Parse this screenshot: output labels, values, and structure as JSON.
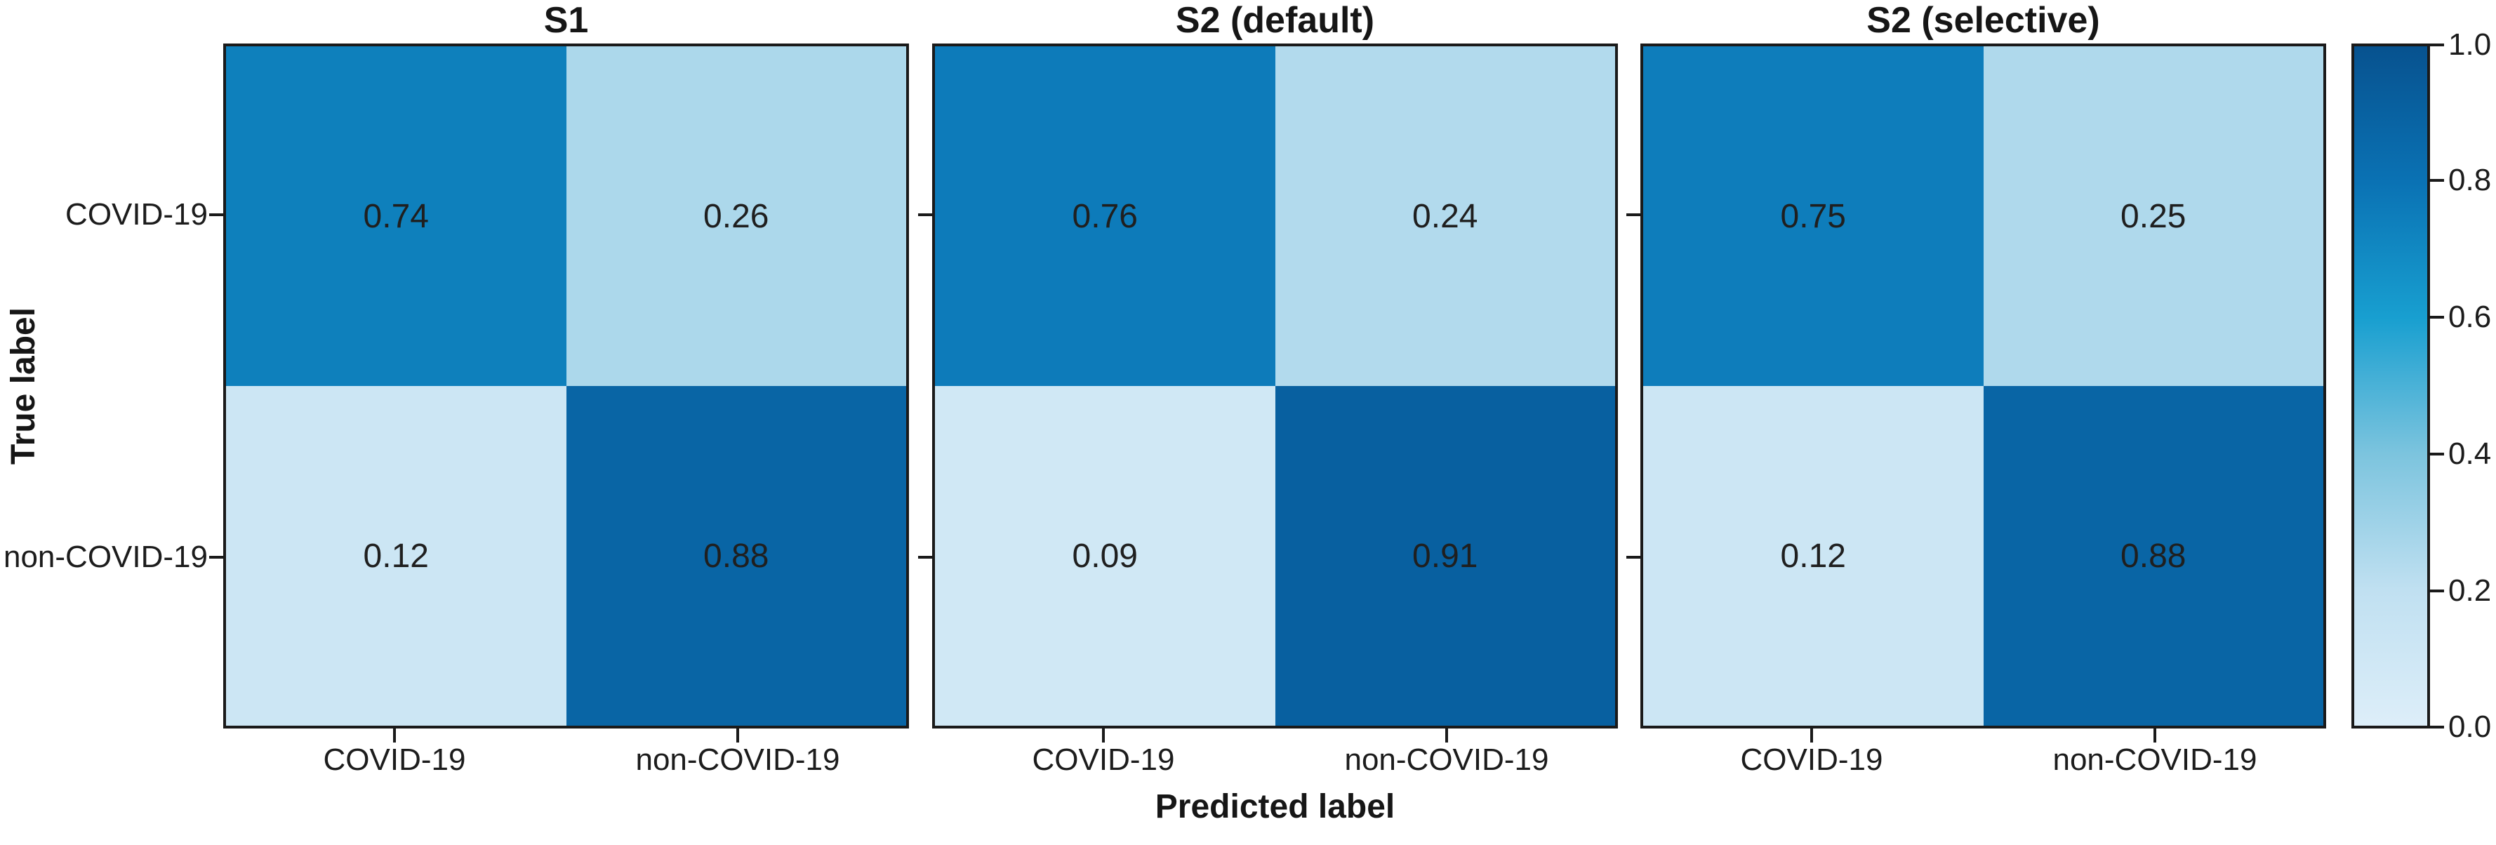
{
  "figure": {
    "xlabel": "Predicted label",
    "ylabel": "True label",
    "classes": [
      "COVID-19",
      "non-COVID-19"
    ],
    "background_color": "#ffffff",
    "spine_color": "#1a1a1a",
    "cell_text_color": "#1f1f1f"
  },
  "chart_data": [
    {
      "type": "heatmap",
      "title": "S1",
      "x_categories": [
        "COVID-19",
        "non-COVID-19"
      ],
      "y_categories": [
        "COVID-19",
        "non-COVID-19"
      ],
      "matrix": [
        [
          0.74,
          0.26
        ],
        [
          0.12,
          0.88
        ]
      ],
      "xlabel": "Predicted label",
      "ylabel": "True label",
      "value_range": [
        0.0,
        1.0
      ],
      "colormap": "blues",
      "grid": false,
      "legend_position": "shared-colorbar-right"
    },
    {
      "type": "heatmap",
      "title": "S2 (default)",
      "x_categories": [
        "COVID-19",
        "non-COVID-19"
      ],
      "y_categories": [
        "COVID-19",
        "non-COVID-19"
      ],
      "matrix": [
        [
          0.76,
          0.24
        ],
        [
          0.09,
          0.91
        ]
      ],
      "xlabel": "Predicted label",
      "ylabel": "True label",
      "value_range": [
        0.0,
        1.0
      ],
      "colormap": "blues",
      "grid": false,
      "legend_position": "shared-colorbar-right"
    },
    {
      "type": "heatmap",
      "title": "S2 (selective)",
      "x_categories": [
        "COVID-19",
        "non-COVID-19"
      ],
      "y_categories": [
        "COVID-19",
        "non-COVID-19"
      ],
      "matrix": [
        [
          0.75,
          0.25
        ],
        [
          0.12,
          0.88
        ]
      ],
      "xlabel": "Predicted label",
      "ylabel": "True label",
      "value_range": [
        0.0,
        1.0
      ],
      "colormap": "blues",
      "grid": false,
      "legend_position": "shared-colorbar-right"
    }
  ],
  "colorbar": {
    "min": 0.0,
    "max": 1.0,
    "tick_labels": [
      "1.0",
      "0.8",
      "0.6",
      "0.4",
      "0.2",
      "0.0"
    ],
    "gradient_stops": [
      {
        "value": 0.0,
        "color": "#ddeef9"
      },
      {
        "value": 0.2,
        "color": "#c0e0f1"
      },
      {
        "value": 0.4,
        "color": "#7cc4de"
      },
      {
        "value": 0.6,
        "color": "#189fd0"
      },
      {
        "value": 0.8,
        "color": "#0a72b4"
      },
      {
        "value": 1.0,
        "color": "#07528f"
      }
    ]
  }
}
